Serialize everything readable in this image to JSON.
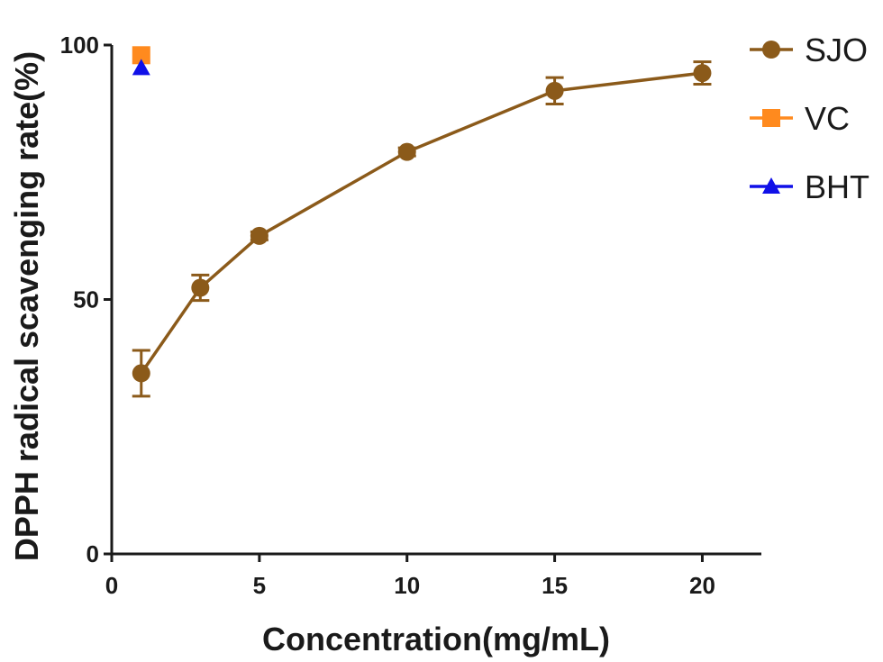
{
  "chart_data": {
    "type": "line",
    "title": "",
    "xlabel": "Concentration(mg/mL)",
    "ylabel": "DPPH radical scavenging rate(%)",
    "xlim": [
      0,
      22
    ],
    "ylim": [
      0,
      100
    ],
    "x_ticks": [
      0,
      5,
      10,
      15,
      20
    ],
    "y_ticks": [
      0,
      50,
      100
    ],
    "grid": false,
    "legend_position": "top-right",
    "series": [
      {
        "name": "SJO",
        "marker": "circle",
        "color": "#8B5A1A",
        "connected": true,
        "x": [
          1,
          3,
          5,
          10,
          15,
          20
        ],
        "y": [
          35.5,
          52.3,
          62.5,
          79,
          91,
          94.5
        ],
        "error": [
          4.5,
          2.5,
          0.8,
          0.8,
          2.6,
          2.2
        ]
      },
      {
        "name": "VC",
        "marker": "square",
        "color": "#FF8A1E",
        "connected": false,
        "x": [
          1
        ],
        "y": [
          98
        ],
        "error": [
          0
        ]
      },
      {
        "name": "BHT",
        "marker": "triangle",
        "color": "#1010E8",
        "connected": false,
        "x": [
          1
        ],
        "y": [
          95.5
        ],
        "error": [
          0
        ]
      }
    ]
  }
}
